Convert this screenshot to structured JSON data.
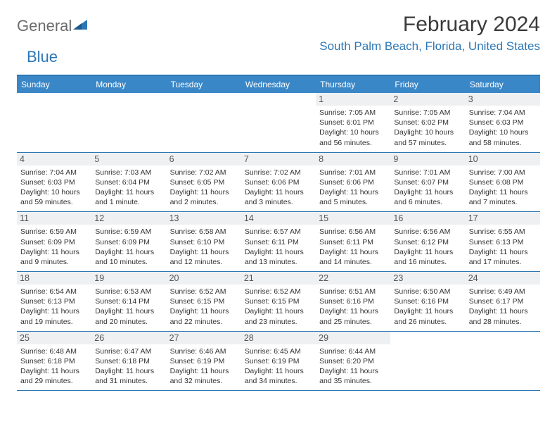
{
  "colors": {
    "brand_blue": "#2d77b5",
    "header_blue": "#3a87c7",
    "logo_gray": "#6b6b6b",
    "text": "#333333",
    "daynum_bg": "#eef0f2",
    "daynum_text": "#555555",
    "background": "#ffffff"
  },
  "typography": {
    "month_title_fontsize": 30,
    "location_fontsize": 17,
    "weekday_fontsize": 12,
    "daynum_fontsize": 12.5,
    "dayinfo_fontsize": 10.5,
    "logo_fontsize": 22
  },
  "logo": {
    "part1": "General",
    "part2": "Blue"
  },
  "title": "February 2024",
  "location": "South Palm Beach, Florida, United States",
  "weekdays": [
    "Sunday",
    "Monday",
    "Tuesday",
    "Wednesday",
    "Thursday",
    "Friday",
    "Saturday"
  ],
  "weeks": [
    [
      null,
      null,
      null,
      null,
      {
        "num": "1",
        "sunrise": "Sunrise: 7:05 AM",
        "sunset": "Sunset: 6:01 PM",
        "daylight": "Daylight: 10 hours and 56 minutes."
      },
      {
        "num": "2",
        "sunrise": "Sunrise: 7:05 AM",
        "sunset": "Sunset: 6:02 PM",
        "daylight": "Daylight: 10 hours and 57 minutes."
      },
      {
        "num": "3",
        "sunrise": "Sunrise: 7:04 AM",
        "sunset": "Sunset: 6:03 PM",
        "daylight": "Daylight: 10 hours and 58 minutes."
      }
    ],
    [
      {
        "num": "4",
        "sunrise": "Sunrise: 7:04 AM",
        "sunset": "Sunset: 6:03 PM",
        "daylight": "Daylight: 10 hours and 59 minutes."
      },
      {
        "num": "5",
        "sunrise": "Sunrise: 7:03 AM",
        "sunset": "Sunset: 6:04 PM",
        "daylight": "Daylight: 11 hours and 1 minute."
      },
      {
        "num": "6",
        "sunrise": "Sunrise: 7:02 AM",
        "sunset": "Sunset: 6:05 PM",
        "daylight": "Daylight: 11 hours and 2 minutes."
      },
      {
        "num": "7",
        "sunrise": "Sunrise: 7:02 AM",
        "sunset": "Sunset: 6:06 PM",
        "daylight": "Daylight: 11 hours and 3 minutes."
      },
      {
        "num": "8",
        "sunrise": "Sunrise: 7:01 AM",
        "sunset": "Sunset: 6:06 PM",
        "daylight": "Daylight: 11 hours and 5 minutes."
      },
      {
        "num": "9",
        "sunrise": "Sunrise: 7:01 AM",
        "sunset": "Sunset: 6:07 PM",
        "daylight": "Daylight: 11 hours and 6 minutes."
      },
      {
        "num": "10",
        "sunrise": "Sunrise: 7:00 AM",
        "sunset": "Sunset: 6:08 PM",
        "daylight": "Daylight: 11 hours and 7 minutes."
      }
    ],
    [
      {
        "num": "11",
        "sunrise": "Sunrise: 6:59 AM",
        "sunset": "Sunset: 6:09 PM",
        "daylight": "Daylight: 11 hours and 9 minutes."
      },
      {
        "num": "12",
        "sunrise": "Sunrise: 6:59 AM",
        "sunset": "Sunset: 6:09 PM",
        "daylight": "Daylight: 11 hours and 10 minutes."
      },
      {
        "num": "13",
        "sunrise": "Sunrise: 6:58 AM",
        "sunset": "Sunset: 6:10 PM",
        "daylight": "Daylight: 11 hours and 12 minutes."
      },
      {
        "num": "14",
        "sunrise": "Sunrise: 6:57 AM",
        "sunset": "Sunset: 6:11 PM",
        "daylight": "Daylight: 11 hours and 13 minutes."
      },
      {
        "num": "15",
        "sunrise": "Sunrise: 6:56 AM",
        "sunset": "Sunset: 6:11 PM",
        "daylight": "Daylight: 11 hours and 14 minutes."
      },
      {
        "num": "16",
        "sunrise": "Sunrise: 6:56 AM",
        "sunset": "Sunset: 6:12 PM",
        "daylight": "Daylight: 11 hours and 16 minutes."
      },
      {
        "num": "17",
        "sunrise": "Sunrise: 6:55 AM",
        "sunset": "Sunset: 6:13 PM",
        "daylight": "Daylight: 11 hours and 17 minutes."
      }
    ],
    [
      {
        "num": "18",
        "sunrise": "Sunrise: 6:54 AM",
        "sunset": "Sunset: 6:13 PM",
        "daylight": "Daylight: 11 hours and 19 minutes."
      },
      {
        "num": "19",
        "sunrise": "Sunrise: 6:53 AM",
        "sunset": "Sunset: 6:14 PM",
        "daylight": "Daylight: 11 hours and 20 minutes."
      },
      {
        "num": "20",
        "sunrise": "Sunrise: 6:52 AM",
        "sunset": "Sunset: 6:15 PM",
        "daylight": "Daylight: 11 hours and 22 minutes."
      },
      {
        "num": "21",
        "sunrise": "Sunrise: 6:52 AM",
        "sunset": "Sunset: 6:15 PM",
        "daylight": "Daylight: 11 hours and 23 minutes."
      },
      {
        "num": "22",
        "sunrise": "Sunrise: 6:51 AM",
        "sunset": "Sunset: 6:16 PM",
        "daylight": "Daylight: 11 hours and 25 minutes."
      },
      {
        "num": "23",
        "sunrise": "Sunrise: 6:50 AM",
        "sunset": "Sunset: 6:16 PM",
        "daylight": "Daylight: 11 hours and 26 minutes."
      },
      {
        "num": "24",
        "sunrise": "Sunrise: 6:49 AM",
        "sunset": "Sunset: 6:17 PM",
        "daylight": "Daylight: 11 hours and 28 minutes."
      }
    ],
    [
      {
        "num": "25",
        "sunrise": "Sunrise: 6:48 AM",
        "sunset": "Sunset: 6:18 PM",
        "daylight": "Daylight: 11 hours and 29 minutes."
      },
      {
        "num": "26",
        "sunrise": "Sunrise: 6:47 AM",
        "sunset": "Sunset: 6:18 PM",
        "daylight": "Daylight: 11 hours and 31 minutes."
      },
      {
        "num": "27",
        "sunrise": "Sunrise: 6:46 AM",
        "sunset": "Sunset: 6:19 PM",
        "daylight": "Daylight: 11 hours and 32 minutes."
      },
      {
        "num": "28",
        "sunrise": "Sunrise: 6:45 AM",
        "sunset": "Sunset: 6:19 PM",
        "daylight": "Daylight: 11 hours and 34 minutes."
      },
      {
        "num": "29",
        "sunrise": "Sunrise: 6:44 AM",
        "sunset": "Sunset: 6:20 PM",
        "daylight": "Daylight: 11 hours and 35 minutes."
      },
      null,
      null
    ]
  ]
}
